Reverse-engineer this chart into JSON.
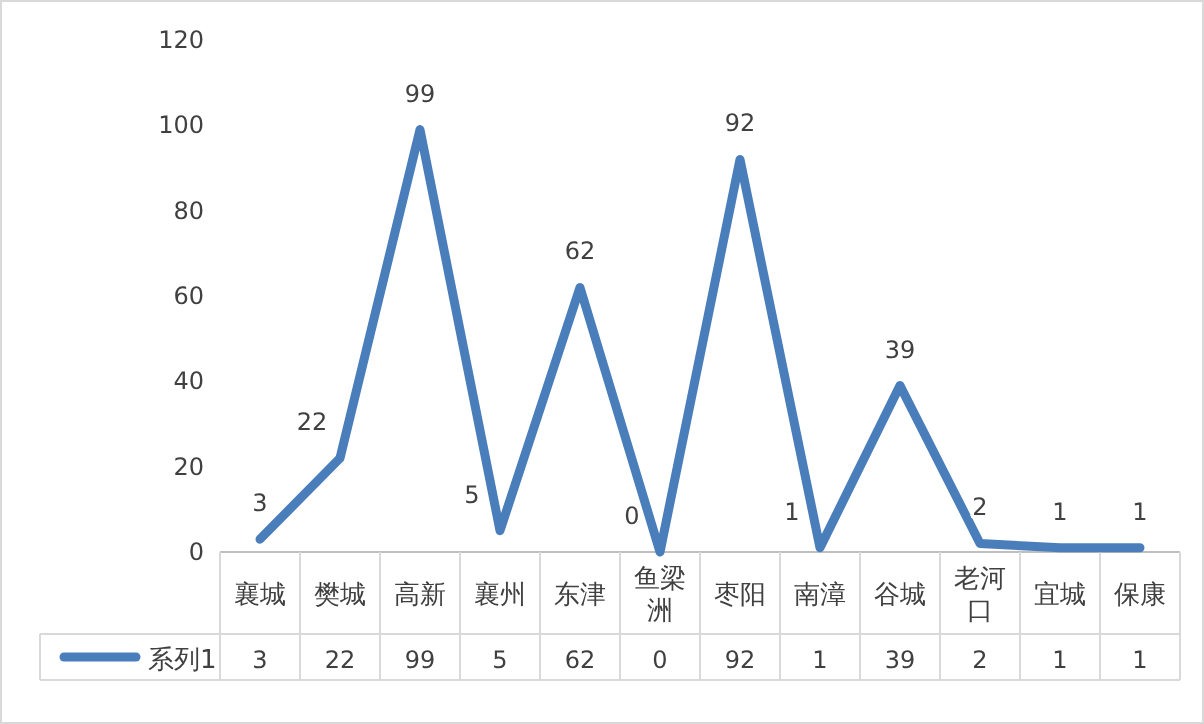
{
  "chart_data": {
    "type": "line",
    "categories": [
      "襄城",
      "樊城",
      "高新",
      "襄州",
      "东津",
      "鱼梁洲",
      "枣阳",
      "南漳",
      "谷城",
      "老河口",
      "宜城",
      "保康"
    ],
    "series": [
      {
        "name": "系列1",
        "color": "#4a7ebb",
        "values": [
          3,
          22,
          99,
          5,
          62,
          0,
          92,
          1,
          39,
          2,
          1,
          1
        ],
        "value_labels": [
          "3",
          "22",
          "99",
          "5",
          "62",
          "0",
          "92",
          "1",
          "39",
          "2",
          "1",
          "1"
        ]
      }
    ],
    "ylim": [
      0,
      120
    ],
    "yticks": [
      0,
      20,
      40,
      60,
      80,
      100,
      120
    ],
    "data_labels": true,
    "legend": "bottom",
    "grid": false,
    "marker": "none",
    "line_style": "solid"
  }
}
